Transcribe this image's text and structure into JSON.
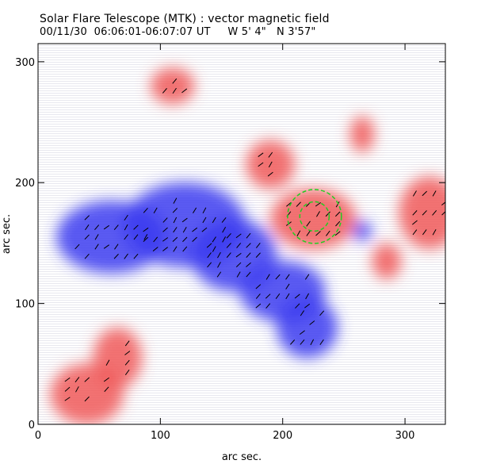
{
  "header": {
    "title": "Solar Flare Telescope (MTK) : vector magnetic field",
    "subtitle": "00/11/30  06:06:01-06:07:07 UT     W 5' 4\"   N 3'57\""
  },
  "chart_data": {
    "type": "heatmap",
    "title": "Solar Flare Telescope (MTK) : vector magnetic field",
    "xlabel": "arc sec.",
    "ylabel": "arc sec.",
    "xlim": [
      0,
      333
    ],
    "ylim": [
      0,
      315
    ],
    "xticks": [
      0,
      100,
      200,
      300
    ],
    "yticks": [
      0,
      100,
      200,
      300
    ],
    "colors": {
      "positive": "#f05a5a",
      "negative": "#3c3cf0",
      "contour": "#22cc22"
    },
    "regions": [
      {
        "polarity": "negative",
        "x": 60,
        "y": 155,
        "rx": 45,
        "ry": 30
      },
      {
        "polarity": "negative",
        "x": 120,
        "y": 165,
        "rx": 50,
        "ry": 35
      },
      {
        "polarity": "negative",
        "x": 160,
        "y": 140,
        "rx": 35,
        "ry": 30
      },
      {
        "polarity": "negative",
        "x": 200,
        "y": 110,
        "rx": 35,
        "ry": 25
      },
      {
        "polarity": "negative",
        "x": 220,
        "y": 80,
        "rx": 25,
        "ry": 25
      },
      {
        "polarity": "negative",
        "x": 265,
        "y": 160,
        "rx": 8,
        "ry": 8
      },
      {
        "polarity": "positive",
        "x": 225,
        "y": 170,
        "rx": 35,
        "ry": 25
      },
      {
        "polarity": "positive",
        "x": 190,
        "y": 215,
        "rx": 20,
        "ry": 20
      },
      {
        "polarity": "positive",
        "x": 320,
        "y": 175,
        "rx": 25,
        "ry": 30
      },
      {
        "polarity": "positive",
        "x": 40,
        "y": 25,
        "rx": 30,
        "ry": 25
      },
      {
        "polarity": "positive",
        "x": 65,
        "y": 55,
        "rx": 20,
        "ry": 25
      },
      {
        "polarity": "positive",
        "x": 110,
        "y": 280,
        "rx": 18,
        "ry": 15
      },
      {
        "polarity": "positive",
        "x": 285,
        "y": 135,
        "rx": 12,
        "ry": 15
      },
      {
        "polarity": "positive",
        "x": 265,
        "y": 240,
        "rx": 10,
        "ry": 15
      }
    ],
    "contours": [
      {
        "x": 226,
        "y": 172,
        "r": 22
      },
      {
        "x": 226,
        "y": 172,
        "r": 12
      }
    ]
  }
}
